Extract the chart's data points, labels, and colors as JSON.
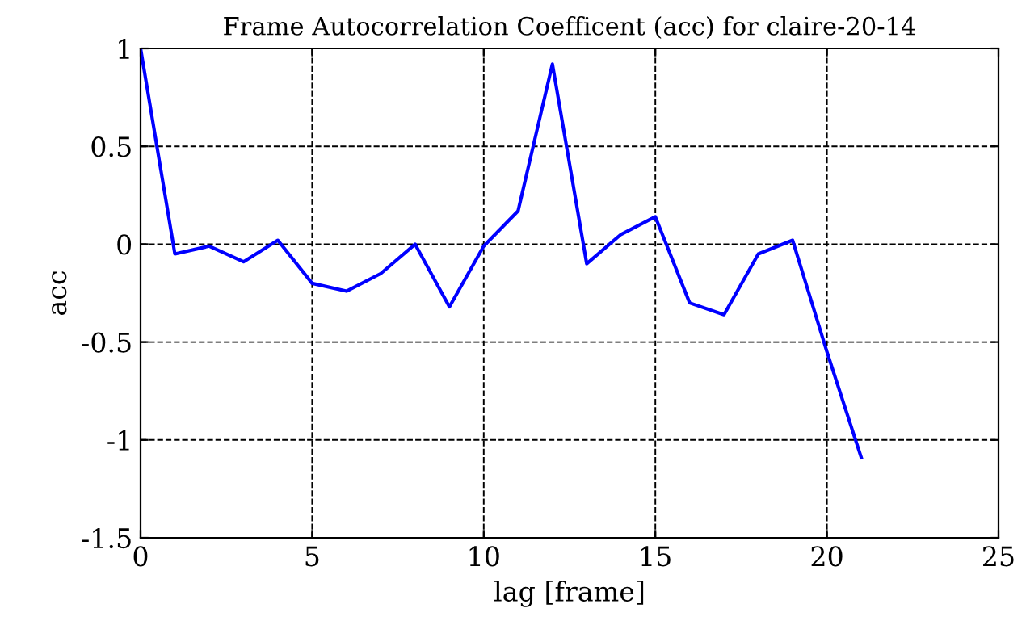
{
  "chart_data": {
    "type": "line",
    "title": "Frame Autocorrelation Coefficent (acc) for claire-20-14",
    "xlabel": "lag [frame]",
    "ylabel": "acc",
    "x": [
      0,
      1,
      2,
      3,
      4,
      5,
      6,
      7,
      8,
      9,
      10,
      11,
      12,
      13,
      14,
      15,
      16,
      17,
      18,
      19,
      20,
      21
    ],
    "series": [
      {
        "color": "#0000ff",
        "values": [
          1.0,
          -0.05,
          -0.01,
          -0.09,
          0.02,
          -0.2,
          -0.24,
          -0.15,
          0.0,
          -0.32,
          -0.01,
          0.17,
          0.92,
          -0.1,
          0.05,
          0.14,
          -0.3,
          -0.36,
          -0.05,
          0.02,
          -0.55,
          -1.09
        ]
      }
    ],
    "xlim": [
      0,
      25
    ],
    "xticks": [
      0,
      5,
      10,
      15,
      20,
      25
    ],
    "ylim": [
      -1.5,
      1
    ],
    "yticks": [
      -1.5,
      -1,
      -0.5,
      0,
      0.5,
      1
    ],
    "grid": true,
    "line_style": "solid"
  }
}
